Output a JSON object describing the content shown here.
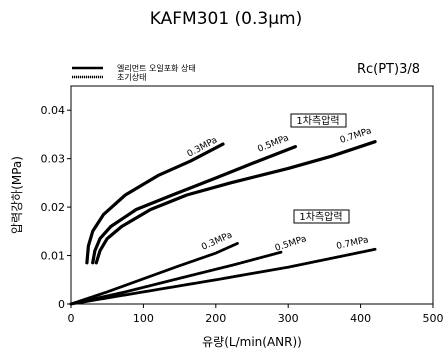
{
  "chart_data": {
    "type": "line",
    "title": "KAFM301 (0.3μm)",
    "annotation_top_right": "Rc(PT)3/8",
    "xlabel": "유량(L/min(ANR))",
    "ylabel": "압력강하(MPa)",
    "xlim": [
      0,
      500
    ],
    "ylim": [
      0,
      0.045
    ],
    "x_ticks": [
      "0",
      "100",
      "200",
      "300",
      "400",
      "500"
    ],
    "y_ticks": [
      "0",
      "0.01",
      "0.02",
      "0.03",
      "0.04"
    ],
    "grid": false,
    "legend_position": "top-left",
    "legend": [
      {
        "label": "엘리먼트 오일포화 상태",
        "style": "solid"
      },
      {
        "label": "초기상태",
        "style": "hatched"
      }
    ],
    "group_labels": [
      "1차측압력",
      "1차측압력"
    ],
    "series": [
      {
        "name": "0.3MPa",
        "group": "saturated",
        "x": [
          22,
          24,
          30,
          45,
          75,
          120,
          165,
          210
        ],
        "y": [
          0.0085,
          0.012,
          0.015,
          0.0185,
          0.0225,
          0.0265,
          0.0295,
          0.033
        ]
      },
      {
        "name": "0.5MPa",
        "group": "saturated",
        "x": [
          30,
          33,
          40,
          55,
          90,
          140,
          200,
          250,
          310
        ],
        "y": [
          0.0085,
          0.011,
          0.0135,
          0.016,
          0.0195,
          0.0225,
          0.026,
          0.029,
          0.0325
        ]
      },
      {
        "name": "0.7MPa",
        "group": "saturated",
        "x": [
          35,
          40,
          50,
          70,
          110,
          160,
          220,
          300,
          360,
          420
        ],
        "y": [
          0.0085,
          0.011,
          0.0135,
          0.016,
          0.0195,
          0.0225,
          0.025,
          0.028,
          0.0305,
          0.0335
        ]
      },
      {
        "name": "0.3MPa",
        "group": "initial",
        "x": [
          0,
          50,
          100,
          150,
          200,
          230
        ],
        "y": [
          0,
          0.0025,
          0.0052,
          0.0079,
          0.0105,
          0.0125
        ]
      },
      {
        "name": "0.5MPa",
        "group": "initial",
        "x": [
          0,
          75,
          150,
          225,
          290
        ],
        "y": [
          0,
          0.0025,
          0.0053,
          0.0081,
          0.0107
        ]
      },
      {
        "name": "0.7MPa",
        "group": "initial",
        "x": [
          0,
          100,
          200,
          300,
          420
        ],
        "y": [
          0,
          0.0025,
          0.005,
          0.0076,
          0.0113
        ]
      }
    ],
    "curve_labels": [
      "0.3MPa",
      "0.5MPa",
      "0.7MPa",
      "0.3MPa",
      "0.5MPa",
      "0.7MPa"
    ]
  }
}
